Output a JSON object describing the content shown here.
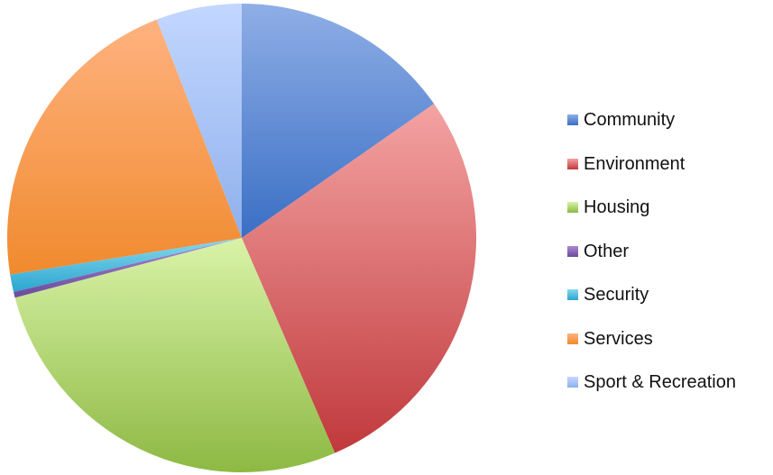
{
  "chart_data": {
    "type": "pie",
    "title": "",
    "start_angle_deg": 0,
    "direction": "clockwise",
    "legend_position": "right",
    "categories": [
      "Community",
      "Environment",
      "Housing",
      "Other",
      "Security",
      "Services",
      "Sport & Recreation"
    ],
    "values": [
      15.3,
      28.2,
      27.4,
      0.4,
      1.2,
      21.6,
      5.9
    ],
    "unit": "percent",
    "colors": {
      "Community": {
        "light": "#8FAEE6",
        "dark": "#3A6FC4",
        "swatch": "#4472C4"
      },
      "Environment": {
        "light": "#F4A3A3",
        "dark": "#C0393C",
        "swatch": "#CF4A4C"
      },
      "Housing": {
        "light": "#D9F3A8",
        "dark": "#8DB943",
        "swatch": "#9ACD4D"
      },
      "Other": {
        "light": "#A98BD0",
        "dark": "#6B4A9E",
        "swatch": "#7C5AB0"
      },
      "Security": {
        "light": "#87D8EE",
        "dark": "#2BA6CF",
        "swatch": "#3DB5DA"
      },
      "Services": {
        "light": "#FFB27F",
        "dark": "#F08A2E",
        "swatch": "#F6944A"
      },
      "Sport & Recreation": {
        "light": "#C3D7FF",
        "dark": "#8FB0EC",
        "swatch": "#A6C2F4"
      }
    }
  }
}
